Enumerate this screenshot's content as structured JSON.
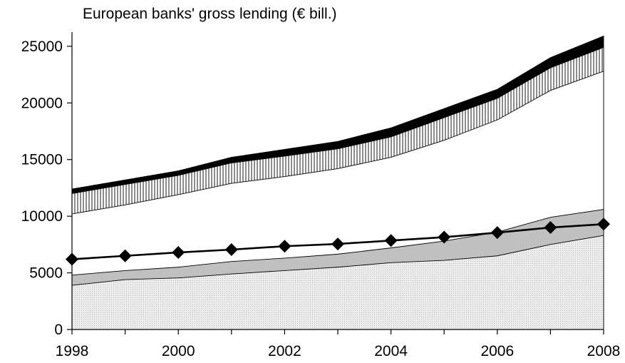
{
  "chart_data": {
    "type": "area",
    "title": "European banks' gross lending (€ bill.)",
    "xlabel": "",
    "ylabel": "",
    "x": [
      1998,
      1999,
      2000,
      2001,
      2002,
      2003,
      2004,
      2005,
      2006,
      2007,
      2008
    ],
    "xlim": [
      1998,
      2008
    ],
    "ylim": [
      0,
      26000
    ],
    "x_tick_labels": [
      "1998",
      "2000",
      "2002",
      "2004",
      "2006",
      "2008"
    ],
    "y_tick_labels": [
      "0",
      "5000",
      "10000",
      "15000",
      "20000",
      "25000"
    ],
    "grid": false,
    "legend": "none",
    "series": [
      {
        "values": [
          3900,
          4400,
          4550,
          4900,
          5200,
          5500,
          5900,
          6100,
          6500,
          7500,
          8300
        ],
        "style": "area",
        "fill": "#e6e6e6"
      },
      {
        "values": [
          4800,
          5200,
          5500,
          6000,
          6300,
          6650,
          7200,
          7800,
          8600,
          9900,
          10600
        ],
        "style": "area",
        "fill": "#c0c0c0"
      },
      {
        "values": [
          10200,
          11000,
          11900,
          12900,
          13500,
          14200,
          15200,
          16700,
          18500,
          21100,
          22800
        ],
        "style": "area",
        "fill": "#ffffff"
      },
      {
        "values": [
          12000,
          12800,
          13600,
          14700,
          15300,
          15950,
          17000,
          18700,
          20400,
          23100,
          24900
        ],
        "style": "area",
        "fill": "vertical-hatch"
      },
      {
        "values": [
          12400,
          13200,
          14000,
          15200,
          15900,
          16600,
          17800,
          19500,
          21200,
          24000,
          25900
        ],
        "style": "area",
        "fill": "#000000"
      },
      {
        "values": [
          6200,
          6500,
          6800,
          7050,
          7350,
          7550,
          7850,
          8150,
          8550,
          9000,
          9300
        ],
        "style": "line-diamond",
        "color": "#000000"
      }
    ]
  }
}
